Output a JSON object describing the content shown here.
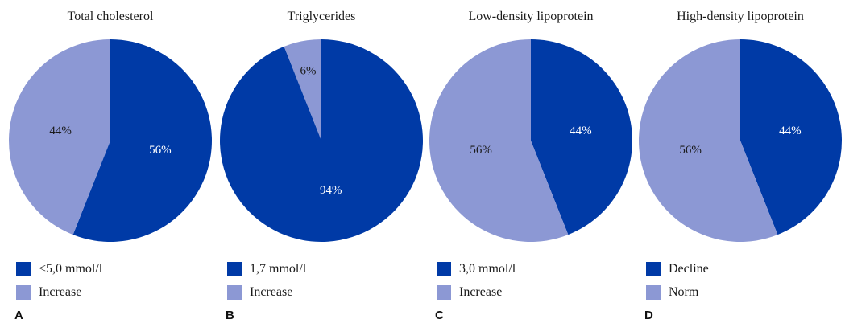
{
  "colors": {
    "dark": "#003aa6",
    "light": "#8c98d4",
    "dark_label": "#ffffff",
    "light_label": "#1a1a1a"
  },
  "chart_data": [
    {
      "type": "pie",
      "title": "Total cholesterol",
      "panel_letter": "A",
      "slices": [
        {
          "label": "<5,0 mmol/l",
          "value": 56,
          "display": "56%",
          "color": "dark"
        },
        {
          "label": "Increase",
          "value": 44,
          "display": "44%",
          "color": "light"
        }
      ]
    },
    {
      "type": "pie",
      "title": "Triglycerides",
      "panel_letter": "B",
      "slices": [
        {
          "label": "1,7 mmol/l",
          "value": 94,
          "display": "94%",
          "color": "dark"
        },
        {
          "label": "Increase",
          "value": 6,
          "display": "6%",
          "color": "light"
        }
      ]
    },
    {
      "type": "pie",
      "title": "Low-density lipoprotein",
      "panel_letter": "C",
      "slices": [
        {
          "label": "3,0 mmol/l",
          "value": 44,
          "display": "44%",
          "color": "dark"
        },
        {
          "label": "Increase",
          "value": 56,
          "display": "56%",
          "color": "light"
        }
      ]
    },
    {
      "type": "pie",
      "title": "High-density lipoprotein",
      "panel_letter": "D",
      "slices": [
        {
          "label": "Decline",
          "value": 44,
          "display": "44%",
          "color": "dark"
        },
        {
          "label": "Norm",
          "value": 56,
          "display": "56%",
          "color": "light"
        }
      ]
    }
  ]
}
